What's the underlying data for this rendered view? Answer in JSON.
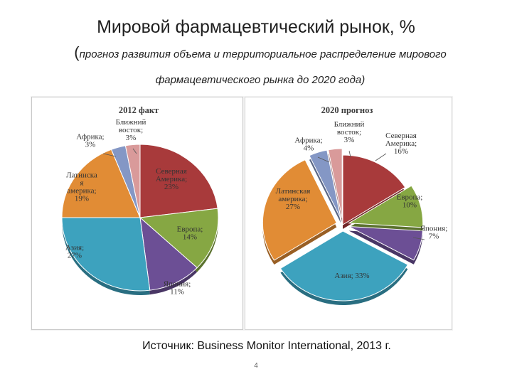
{
  "slide": {
    "title": "Мировой фармацевтический рынок, %",
    "subtitle_open": "(",
    "subtitle_line1": "прогноз развития объема и территориальное распределение мирового",
    "subtitle_line2": "фармацевтического рынка до 2020 года",
    "subtitle_close": ")",
    "source": "Источник: Business Monitor International, 2013 г.",
    "page_number": "4"
  },
  "chart_data": [
    {
      "type": "pie",
      "title": "2012 факт",
      "slices": [
        {
          "name": "Северная Америка",
          "label_lines": [
            "Северная",
            "Америка;",
            "23%"
          ],
          "value": 23,
          "color": "#a83a3b",
          "exploded": false
        },
        {
          "name": "Европа",
          "label_lines": [
            "Европа;",
            "14%"
          ],
          "value": 14,
          "color": "#86a743",
          "exploded": false
        },
        {
          "name": "Япония",
          "label_lines": [
            "Япония;",
            "11%"
          ],
          "value": 11,
          "color": "#6c4f95",
          "exploded": false
        },
        {
          "name": "Азия",
          "label_lines": [
            "Азия;",
            "27%"
          ],
          "value": 27,
          "color": "#3da2be",
          "exploded": false
        },
        {
          "name": "Латинская Америка",
          "label_lines": [
            "Латинска",
            "я",
            "америка;",
            "19%"
          ],
          "value": 19,
          "color": "#e18c35",
          "exploded": false
        },
        {
          "name": "Африка",
          "label_lines": [
            "Африка;",
            "3%"
          ],
          "value": 3,
          "color": "#8497c5",
          "exploded": false
        },
        {
          "name": "Ближний восток",
          "label_lines": [
            "Ближний",
            "восток;",
            "3%"
          ],
          "value": 3,
          "color": "#d99a9a",
          "exploded": false
        }
      ]
    },
    {
      "type": "pie",
      "title": "2020 прогноз",
      "slices": [
        {
          "name": "Северная Америка",
          "label_lines": [
            "Северная",
            "Америка;",
            "16%"
          ],
          "value": 16,
          "color": "#a83a3b",
          "exploded": false
        },
        {
          "name": "Европа",
          "label_lines": [
            "Европа;",
            "10%"
          ],
          "value": 10,
          "color": "#86a743",
          "exploded": true
        },
        {
          "name": "Япония",
          "label_lines": [
            "Япония;",
            "7%"
          ],
          "value": 7,
          "color": "#6c4f95",
          "exploded": true
        },
        {
          "name": "Азия",
          "label_lines": [
            "Азия; 33%"
          ],
          "value": 33,
          "color": "#3da2be",
          "exploded": true
        },
        {
          "name": "Латинская Америка",
          "label_lines": [
            "Латинская",
            "америка;",
            "27%"
          ],
          "value": 27,
          "color": "#e18c35",
          "exploded": true
        },
        {
          "name": "Африка",
          "label_lines": [
            "Африка;",
            "4%"
          ],
          "value": 4,
          "color": "#8497c5",
          "exploded": true
        },
        {
          "name": "Ближний восток",
          "label_lines": [
            "Ближний",
            "восток;",
            "3%"
          ],
          "value": 3,
          "color": "#d99a9a",
          "exploded": true
        }
      ]
    }
  ]
}
